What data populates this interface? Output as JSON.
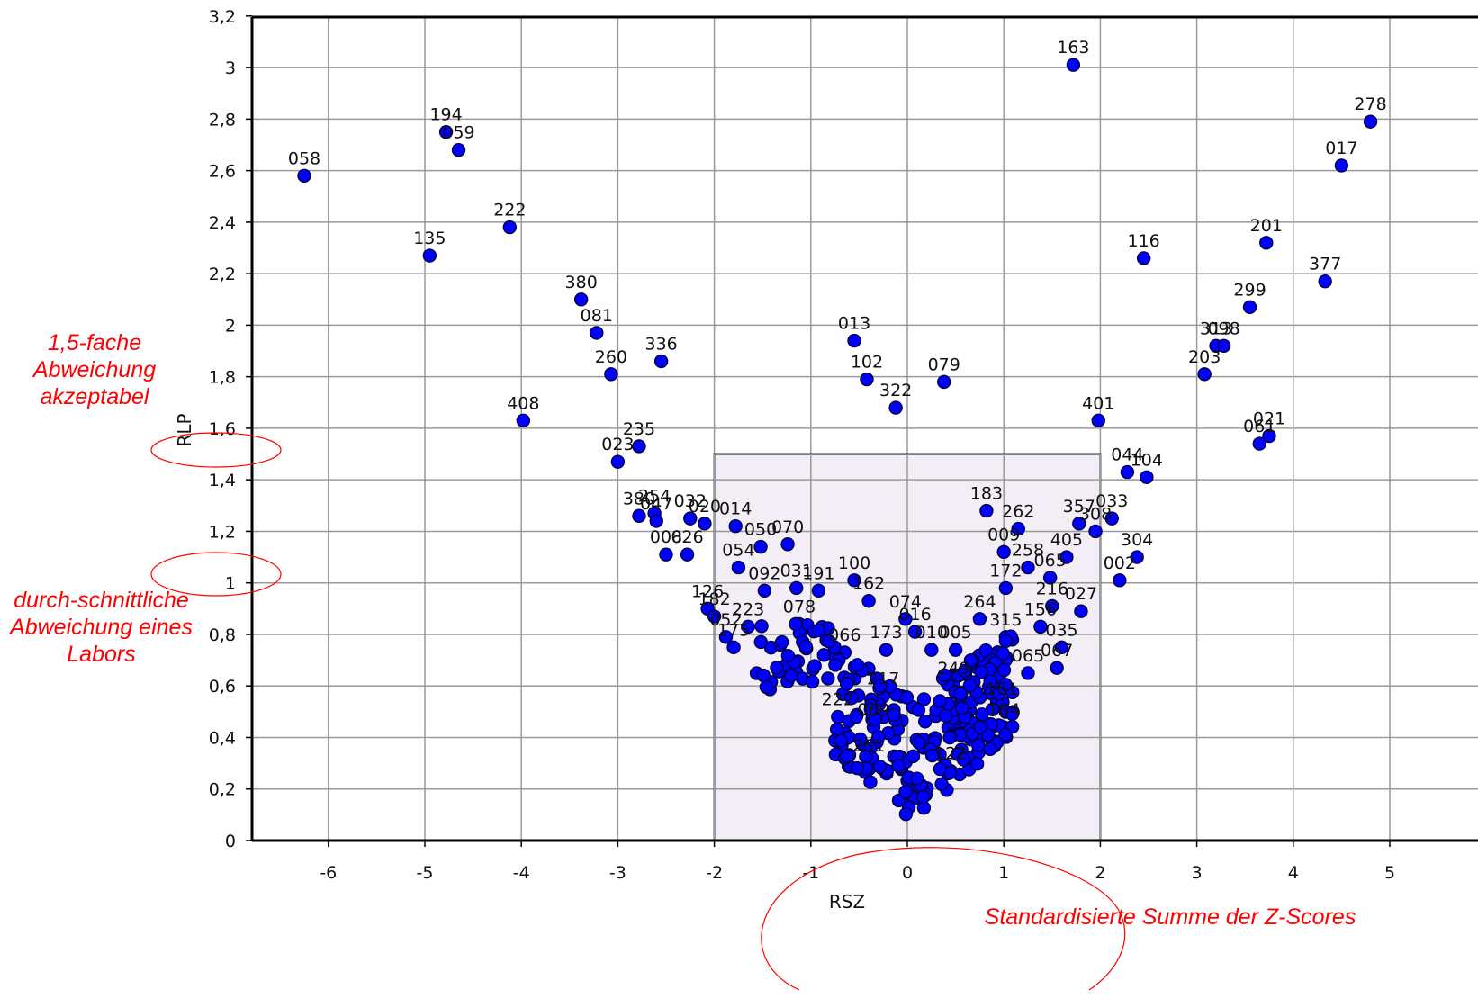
{
  "chart_data": {
    "type": "scatter",
    "xlabel": "RSZ",
    "ylabel": "RLP",
    "xlim": [
      -6.8,
      5.25
    ],
    "ylim": [
      0,
      3.2
    ],
    "x_ticks": [
      "-6",
      "-5",
      "-4",
      "-3",
      "-2",
      "-1",
      "0",
      "1",
      "2",
      "3",
      "4",
      "5"
    ],
    "y_ticks": [
      "0",
      "0,2",
      "0,4",
      "0,6",
      "0,8",
      "1",
      "1,2",
      "1,4",
      "1,6",
      "1,8",
      "2",
      "2,2",
      "2,4",
      "2,6",
      "2,8",
      "3",
      "3,2"
    ],
    "grid": true,
    "acceptance_box": {
      "x": [
        -2,
        2
      ],
      "y": [
        0,
        1.5
      ]
    },
    "marker_color": "#0000ff",
    "points": [
      {
        "label": "058",
        "x": -6.25,
        "y": 2.58
      },
      {
        "label": "194",
        "x": -4.78,
        "y": 2.75
      },
      {
        "label": "059",
        "x": -4.65,
        "y": 2.68
      },
      {
        "label": "135",
        "x": -4.95,
        "y": 2.27
      },
      {
        "label": "222",
        "x": -4.12,
        "y": 2.38
      },
      {
        "label": "408",
        "x": -3.98,
        "y": 1.63
      },
      {
        "label": "380",
        "x": -3.38,
        "y": 2.1
      },
      {
        "label": "081",
        "x": -3.22,
        "y": 1.97
      },
      {
        "label": "260",
        "x": -3.07,
        "y": 1.81
      },
      {
        "label": "336",
        "x": -2.55,
        "y": 1.86
      },
      {
        "label": "235",
        "x": -2.78,
        "y": 1.53
      },
      {
        "label": "023",
        "x": -3.0,
        "y": 1.47
      },
      {
        "label": "254",
        "x": -2.62,
        "y": 1.27
      },
      {
        "label": "380",
        "x": -2.78,
        "y": 1.26
      },
      {
        "label": "047",
        "x": -2.6,
        "y": 1.24
      },
      {
        "label": "032",
        "x": -2.25,
        "y": 1.25
      },
      {
        "label": "020",
        "x": -2.1,
        "y": 1.23
      },
      {
        "label": "014",
        "x": -1.78,
        "y": 1.22
      },
      {
        "label": "008",
        "x": -2.5,
        "y": 1.11
      },
      {
        "label": "026",
        "x": -2.28,
        "y": 1.11
      },
      {
        "label": "050",
        "x": -1.52,
        "y": 1.14
      },
      {
        "label": "070",
        "x": -1.24,
        "y": 1.15
      },
      {
        "label": "054",
        "x": -1.75,
        "y": 1.06
      },
      {
        "label": "092",
        "x": -1.48,
        "y": 0.97
      },
      {
        "label": "031",
        "x": -1.15,
        "y": 0.98
      },
      {
        "label": "191",
        "x": -0.92,
        "y": 0.97
      },
      {
        "label": "100",
        "x": -0.55,
        "y": 1.01
      },
      {
        "label": "162",
        "x": -0.4,
        "y": 0.93
      },
      {
        "label": "126",
        "x": -2.07,
        "y": 0.9
      },
      {
        "label": "182",
        "x": -2.0,
        "y": 0.87
      },
      {
        "label": "223",
        "x": -1.65,
        "y": 0.83
      },
      {
        "label": "078",
        "x": -1.12,
        "y": 0.84
      },
      {
        "label": "052",
        "x": -1.88,
        "y": 0.79
      },
      {
        "label": "175",
        "x": -1.8,
        "y": 0.75
      },
      {
        "label": "066",
        "x": -0.65,
        "y": 0.73
      },
      {
        "label": "074",
        "x": -0.02,
        "y": 0.86
      },
      {
        "label": "016",
        "x": 0.08,
        "y": 0.81
      },
      {
        "label": "173",
        "x": -0.22,
        "y": 0.74
      },
      {
        "label": "010",
        "x": 0.25,
        "y": 0.74
      },
      {
        "label": "005",
        "x": 0.5,
        "y": 0.74
      },
      {
        "label": "264",
        "x": 0.75,
        "y": 0.86
      },
      {
        "label": "183",
        "x": 0.82,
        "y": 1.28
      },
      {
        "label": "262",
        "x": 1.15,
        "y": 1.21
      },
      {
        "label": "009",
        "x": 1.0,
        "y": 1.12
      },
      {
        "label": "258",
        "x": 1.25,
        "y": 1.06
      },
      {
        "label": "172",
        "x": 1.02,
        "y": 0.98
      },
      {
        "label": "065",
        "x": 1.48,
        "y": 1.02
      },
      {
        "label": "405",
        "x": 1.65,
        "y": 1.1
      },
      {
        "label": "357",
        "x": 1.78,
        "y": 1.23
      },
      {
        "label": "033",
        "x": 2.12,
        "y": 1.25
      },
      {
        "label": "308",
        "x": 1.95,
        "y": 1.2
      },
      {
        "label": "304",
        "x": 2.38,
        "y": 1.1
      },
      {
        "label": "002",
        "x": 2.2,
        "y": 1.01
      },
      {
        "label": "216",
        "x": 1.5,
        "y": 0.91
      },
      {
        "label": "027",
        "x": 1.8,
        "y": 0.89
      },
      {
        "label": "315",
        "x": 1.02,
        "y": 0.79
      },
      {
        "label": "156",
        "x": 1.38,
        "y": 0.83
      },
      {
        "label": "035",
        "x": 1.6,
        "y": 0.75
      },
      {
        "label": "067",
        "x": 1.55,
        "y": 0.67
      },
      {
        "label": "065",
        "x": 1.25,
        "y": 0.65
      },
      {
        "label": "044",
        "x": 2.28,
        "y": 1.43
      },
      {
        "label": "104",
        "x": 2.48,
        "y": 1.41
      },
      {
        "label": "401",
        "x": 1.98,
        "y": 1.63
      },
      {
        "label": "116",
        "x": 2.45,
        "y": 2.26
      },
      {
        "label": "163",
        "x": 1.72,
        "y": 3.01
      },
      {
        "label": "013",
        "x": -0.55,
        "y": 1.94
      },
      {
        "label": "102",
        "x": -0.42,
        "y": 1.79
      },
      {
        "label": "322",
        "x": -0.12,
        "y": 1.68
      },
      {
        "label": "079",
        "x": 0.38,
        "y": 1.78
      },
      {
        "label": "203",
        "x": 3.08,
        "y": 1.81
      },
      {
        "label": "313",
        "x": 3.2,
        "y": 1.92
      },
      {
        "label": "098",
        "x": 3.28,
        "y": 1.92
      },
      {
        "label": "299",
        "x": 3.55,
        "y": 2.07
      },
      {
        "label": "201",
        "x": 3.72,
        "y": 2.32
      },
      {
        "label": "377",
        "x": 4.33,
        "y": 2.17
      },
      {
        "label": "017",
        "x": 4.5,
        "y": 2.62
      },
      {
        "label": "278",
        "x": 4.8,
        "y": 2.79
      },
      {
        "label": "021",
        "x": 3.75,
        "y": 1.57
      },
      {
        "label": "061",
        "x": 3.65,
        "y": 1.54
      },
      {
        "label": "222",
        "x": -0.72,
        "y": 0.48
      },
      {
        "label": "217",
        "x": -0.25,
        "y": 0.56
      },
      {
        "label": "251",
        "x": -0.4,
        "y": 0.3
      },
      {
        "label": "249",
        "x": 0.48,
        "y": 0.6
      },
      {
        "label": "161",
        "x": 0.98,
        "y": 0.52
      },
      {
        "label": "184",
        "x": 1.0,
        "y": 0.44
      },
      {
        "label": "122",
        "x": 0.45,
        "y": 0.27
      },
      {
        "label": "069",
        "x": -0.35,
        "y": 0.44
      }
    ]
  },
  "annotations": {
    "acceptable": "1,5-fache Abweichung akzeptabel",
    "average": "durch-schnittliche Abweichung eines Labors",
    "xaxis_note": "Standardisierte Summe der Z-Scores"
  }
}
